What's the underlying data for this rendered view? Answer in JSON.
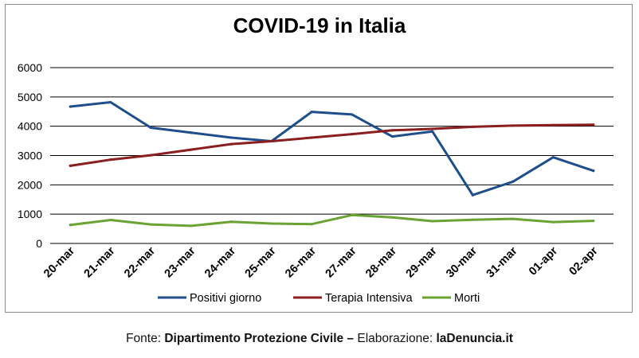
{
  "chart_data": {
    "type": "line",
    "title": "COVID-19 in Italia",
    "categories": [
      "20-mar",
      "21-mar",
      "22-mar",
      "23-mar",
      "24-mar",
      "25-mar",
      "26-mar",
      "27-mar",
      "28-mar",
      "29-mar",
      "30-mar",
      "31-mar",
      "01-apr",
      "02-apr"
    ],
    "ylim": [
      0,
      6000
    ],
    "yticks": [
      0,
      1000,
      2000,
      3000,
      4000,
      5000,
      6000
    ],
    "grid": true,
    "legend_position": "bottom",
    "series": [
      {
        "name": "Positivi giorno",
        "color": "#1f4e8c",
        "values": [
          4670,
          4820,
          3950,
          3780,
          3610,
          3490,
          4490,
          4400,
          3650,
          3820,
          1650,
          2110,
          2940,
          2480
        ]
      },
      {
        "name": "Terapia Intensiva",
        "color": "#8b1e1e",
        "values": [
          2650,
          2860,
          3010,
          3200,
          3390,
          3490,
          3610,
          3730,
          3860,
          3910,
          3980,
          4020,
          4040,
          4050
        ]
      },
      {
        "name": "Morti",
        "color": "#6aa332",
        "values": [
          630,
          800,
          650,
          600,
          740,
          680,
          660,
          970,
          890,
          760,
          810,
          840,
          730,
          770
        ]
      }
    ]
  },
  "caption": {
    "prefix": "Fonte: ",
    "source": "Dipartimento Protezione Civile",
    "dash": " – ",
    "elab_label": "Elaborazione: ",
    "elab": "laDenuncia.it"
  }
}
